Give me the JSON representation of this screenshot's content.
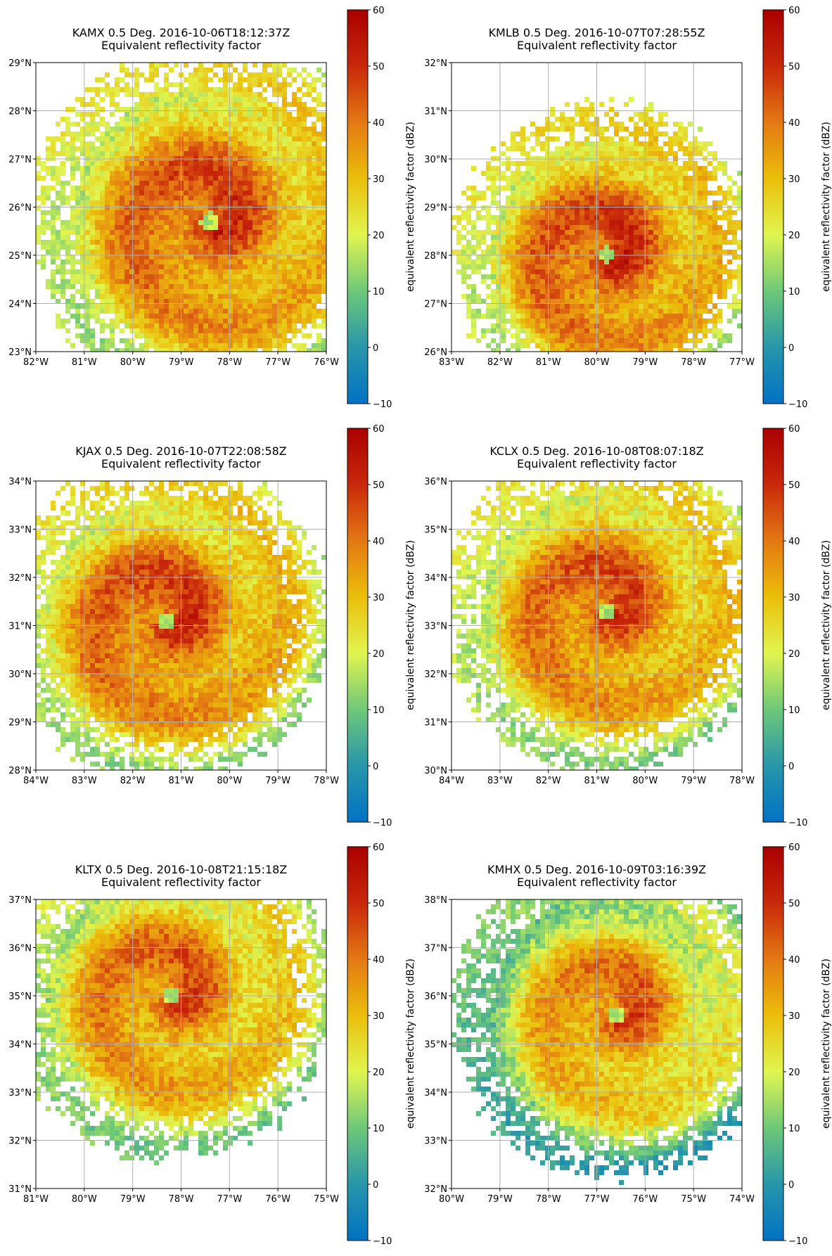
{
  "chart_data": [
    {
      "type": "heatmap",
      "title": "KAMX 0.5 Deg. 2016-10-06T18:12:37Z",
      "subtitle": "Equivalent reflectivity factor",
      "x_ticks": [
        "82°W",
        "81°W",
        "80°W",
        "79°W",
        "78°W",
        "77°W",
        "76°W"
      ],
      "y_ticks": [
        "23°N",
        "24°N",
        "25°N",
        "26°N",
        "27°N",
        "28°N",
        "29°N"
      ],
      "xlim": [
        -82,
        -76
      ],
      "ylim": [
        23,
        29
      ],
      "grid": true,
      "colorbar": {
        "label": "equivalent reflectivity factor (dBZ)",
        "ticks": [
          "−10",
          "0",
          "10",
          "20",
          "30",
          "40",
          "50",
          "60"
        ],
        "range": [
          -10,
          60
        ]
      },
      "echo": {
        "center": [
          -78.4,
          25.7
        ],
        "radius_deg": 3.3,
        "core_dbz": 48,
        "mean_dbz": 32
      }
    },
    {
      "type": "heatmap",
      "title": "KMLB 0.5 Deg. 2016-10-07T07:28:55Z",
      "subtitle": "Equivalent reflectivity factor",
      "x_ticks": [
        "83°W",
        "82°W",
        "81°W",
        "80°W",
        "79°W",
        "78°W",
        "77°W"
      ],
      "y_ticks": [
        "26°N",
        "27°N",
        "28°N",
        "29°N",
        "30°N",
        "31°N",
        "32°N"
      ],
      "xlim": [
        -83,
        -77
      ],
      "ylim": [
        26,
        32
      ],
      "grid": true,
      "colorbar": {
        "label": "equivalent reflectivity factor (dBZ)",
        "ticks": [
          "−10",
          "0",
          "10",
          "20",
          "30",
          "40",
          "50",
          "60"
        ],
        "range": [
          -10,
          60
        ]
      },
      "echo": {
        "center": [
          -79.8,
          28.0
        ],
        "radius_deg": 2.8,
        "core_dbz": 50,
        "mean_dbz": 33
      }
    },
    {
      "type": "heatmap",
      "title": "KJAX 0.5 Deg. 2016-10-07T22:08:58Z",
      "subtitle": "Equivalent reflectivity factor",
      "x_ticks": [
        "84°W",
        "83°W",
        "82°W",
        "81°W",
        "80°W",
        "79°W",
        "78°W"
      ],
      "y_ticks": [
        "28°N",
        "29°N",
        "30°N",
        "31°N",
        "32°N",
        "33°N",
        "34°N"
      ],
      "xlim": [
        -84,
        -78
      ],
      "ylim": [
        28,
        34
      ],
      "grid": true,
      "colorbar": {
        "label": "equivalent reflectivity factor (dBZ)",
        "ticks": [
          "−10",
          "0",
          "10",
          "20",
          "30",
          "40",
          "50",
          "60"
        ],
        "range": [
          -10,
          60
        ]
      },
      "echo": {
        "center": [
          -81.3,
          31.1
        ],
        "radius_deg": 3.0,
        "core_dbz": 48,
        "mean_dbz": 33
      }
    },
    {
      "type": "heatmap",
      "title": "KCLX 0.5 Deg. 2016-10-08T08:07:18Z",
      "subtitle": "Equivalent reflectivity factor",
      "x_ticks": [
        "84°W",
        "83°W",
        "82°W",
        "81°W",
        "80°W",
        "79°W",
        "78°W"
      ],
      "y_ticks": [
        "30°N",
        "31°N",
        "32°N",
        "33°N",
        "34°N",
        "35°N",
        "36°N"
      ],
      "xlim": [
        -84,
        -78
      ],
      "ylim": [
        30,
        36
      ],
      "grid": true,
      "colorbar": {
        "label": "equivalent reflectivity factor (dBZ)",
        "ticks": [
          "−10",
          "0",
          "10",
          "20",
          "30",
          "40",
          "50",
          "60"
        ],
        "range": [
          -10,
          60
        ]
      },
      "echo": {
        "center": [
          -80.8,
          33.3
        ],
        "radius_deg": 3.0,
        "core_dbz": 46,
        "mean_dbz": 32
      }
    },
    {
      "type": "heatmap",
      "title": "KLTX 0.5 Deg. 2016-10-08T21:15:18Z",
      "subtitle": "Equivalent reflectivity factor",
      "x_ticks": [
        "81°W",
        "80°W",
        "79°W",
        "78°W",
        "77°W",
        "76°W",
        "75°W"
      ],
      "y_ticks": [
        "31°N",
        "32°N",
        "33°N",
        "34°N",
        "35°N",
        "36°N",
        "37°N"
      ],
      "xlim": [
        -81,
        -75
      ],
      "ylim": [
        31,
        37
      ],
      "grid": true,
      "colorbar": {
        "label": "equivalent reflectivity factor (dBZ)",
        "ticks": [
          "−10",
          "0",
          "10",
          "20",
          "30",
          "40",
          "50",
          "60"
        ],
        "range": [
          -10,
          60
        ]
      },
      "echo": {
        "center": [
          -78.2,
          35.0
        ],
        "radius_deg": 3.0,
        "core_dbz": 44,
        "mean_dbz": 30
      }
    },
    {
      "type": "heatmap",
      "title": "KMHX 0.5 Deg. 2016-10-09T03:16:39Z",
      "subtitle": "Equivalent reflectivity factor",
      "x_ticks": [
        "80°W",
        "79°W",
        "78°W",
        "77°W",
        "76°W",
        "75°W",
        "74°W"
      ],
      "y_ticks": [
        "32°N",
        "33°N",
        "34°N",
        "35°N",
        "36°N",
        "37°N",
        "38°N"
      ],
      "xlim": [
        -80,
        -74
      ],
      "ylim": [
        32,
        38
      ],
      "grid": true,
      "colorbar": {
        "label": "equivalent reflectivity factor (dBZ)",
        "ticks": [
          "−10",
          "0",
          "10",
          "20",
          "30",
          "40",
          "50",
          "60"
        ],
        "range": [
          -10,
          60
        ]
      },
      "echo": {
        "center": [
          -76.6,
          35.6
        ],
        "radius_deg": 3.0,
        "core_dbz": 46,
        "mean_dbz": 22
      }
    }
  ]
}
